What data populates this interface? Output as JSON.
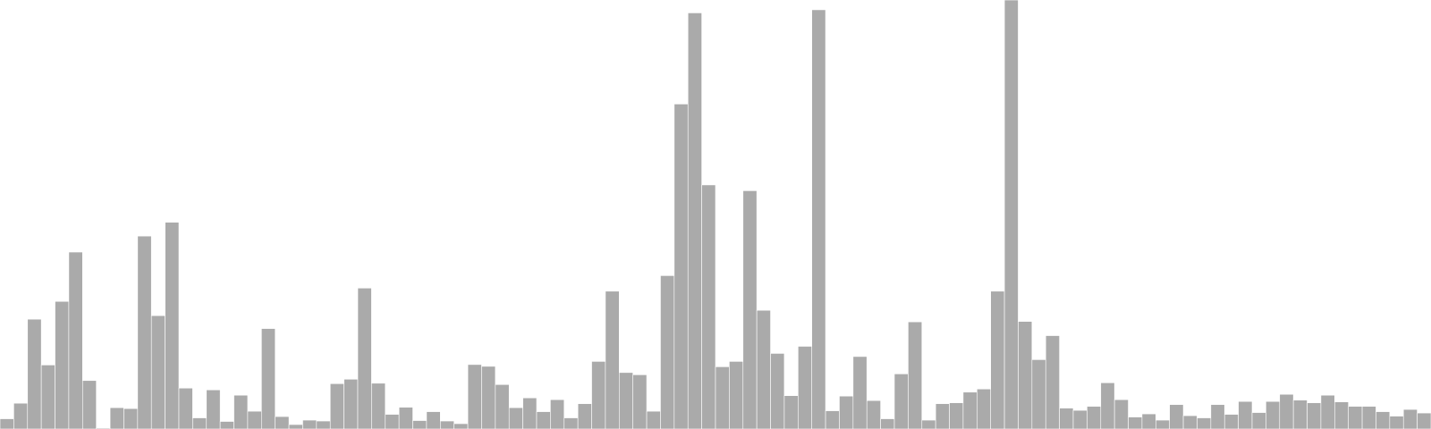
{
  "chart_data": {
    "type": "bar",
    "series": [
      {
        "color": "#aaaaaa",
        "values": [
          2.3,
          5.8,
          24.7,
          14.4,
          28.7,
          39.8,
          10.9,
          0.2,
          4.8,
          4.6,
          43.4,
          25.5,
          46.5,
          9.2,
          2.5,
          8.8,
          1.7,
          7.6,
          4.0,
          22.6,
          2.8,
          1.0,
          2.0,
          1.8,
          10.2,
          11.2,
          31.7,
          10.3,
          3.3,
          4.9,
          1.9,
          3.9,
          1.8,
          1.2,
          14.5,
          14.1,
          10.0,
          4.8,
          7.0,
          3.9,
          6.6,
          2.5,
          5.7,
          15.2,
          31.0,
          12.7,
          12.2,
          4.0,
          34.5,
          73.1,
          93.6,
          54.9,
          14.0,
          15.2,
          53.6,
          26.7,
          17.0,
          7.5,
          18.6,
          94.3,
          4.1,
          7.4,
          16.3,
          6.4,
          2.3,
          12.4,
          24.1,
          2.0,
          5.7,
          5.9,
          8.3,
          9.0,
          31.0,
          96.5,
          24.2,
          15.6,
          21.0,
          4.7,
          4.2,
          5.1,
          10.4,
          6.6,
          2.7,
          3.4,
          2.0,
          5.5,
          3.0,
          2.5,
          5.5,
          3.3,
          6.2,
          3.7,
          6.2,
          7.8,
          6.5,
          5.9,
          7.6,
          6.1,
          5.1,
          5.1,
          3.9,
          2.9,
          4.4,
          3.6
        ]
      }
    ],
    "ylim": [
      0,
      96.5
    ],
    "grid": false,
    "title": "",
    "xlabel": "",
    "ylabel": ""
  }
}
